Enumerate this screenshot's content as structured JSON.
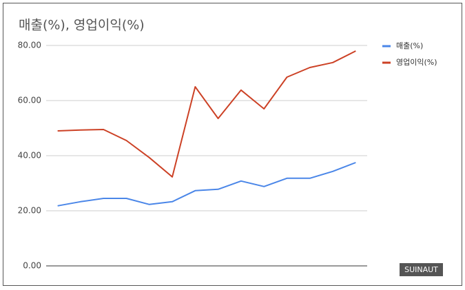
{
  "chart_data": {
    "type": "line",
    "title": "매출(%), 영업이익(%)",
    "categories": [
      null,
      null,
      null,
      null,
      null,
      null,
      null,
      null,
      null,
      null,
      null,
      null,
      null,
      null
    ],
    "series": [
      {
        "name": "매출(%)",
        "color": "#4a86e8",
        "values": [
          21.8,
          23.3,
          24.5,
          24.5,
          22.3,
          23.3,
          27.3,
          27.8,
          30.8,
          28.8,
          31.8,
          31.8,
          34.3,
          37.5
        ]
      },
      {
        "name": "영업이익(%)",
        "color": "#cc4125",
        "values": [
          49,
          49.3,
          49.5,
          45.5,
          39.3,
          32.3,
          65,
          53.5,
          63.8,
          57,
          68.5,
          72,
          73.8,
          78
        ]
      }
    ],
    "ylim": [
      0,
      80
    ],
    "yticks": [
      {
        "value": 0,
        "label": "0.00"
      },
      {
        "value": 20,
        "label": "20.00"
      },
      {
        "value": 40,
        "label": "40.00"
      },
      {
        "value": 60,
        "label": "60.00"
      },
      {
        "value": 80,
        "label": "80.00"
      }
    ],
    "grid": true,
    "legend": "right",
    "watermark": "SUINAUT"
  }
}
